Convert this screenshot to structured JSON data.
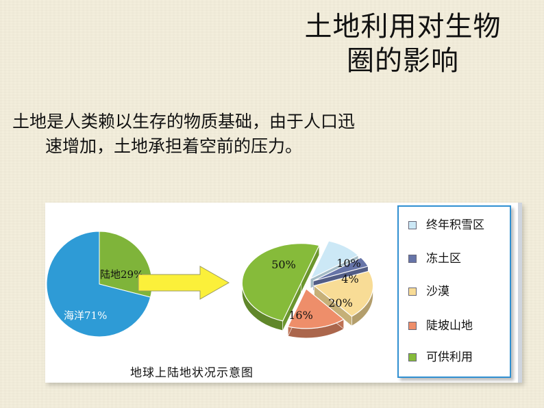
{
  "slide": {
    "title_line1": "土地利用对生物",
    "title_line2": "圈的影响",
    "intro_line1": "土地是人类赖以生存的物质基础，由于人口迅",
    "intro_line2": "速增加，土地承担着空前的压力。"
  },
  "chart_data": [
    {
      "type": "pie",
      "title": "",
      "slices": [
        {
          "label": "海洋",
          "display": "海洋71%",
          "value": 71,
          "color": "#2e9bd6"
        },
        {
          "label": "陆地",
          "display": "陆地29%",
          "value": 29,
          "color": "#7fb43a"
        }
      ]
    },
    {
      "type": "pie",
      "title": "",
      "slices": [
        {
          "label": "终年积雪区",
          "display": "10%",
          "value": 10,
          "color": "#cce8f6"
        },
        {
          "label": "冻土区",
          "display": "4%",
          "value": 4,
          "color": "#6674a8"
        },
        {
          "label": "沙漠",
          "display": "20%",
          "value": 20,
          "color": "#f8dc96"
        },
        {
          "label": "陡坡山地",
          "display": "16%",
          "value": 16,
          "color": "#ee8e6a"
        },
        {
          "label": "可供利用",
          "display": "50%",
          "value": 50,
          "color": "#86bb3a"
        }
      ],
      "legend_position": "right"
    }
  ],
  "figure": {
    "caption": "地球上陆地状况示意图",
    "arrow_color": "#fbf03a"
  }
}
